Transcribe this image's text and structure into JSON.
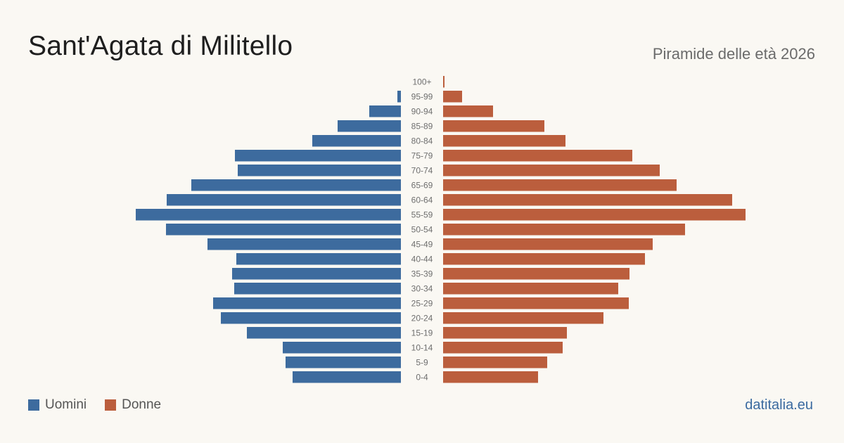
{
  "header": {
    "title": "Sant'Agata di Militello",
    "subtitle": "Piramide delle età 2026"
  },
  "legend": {
    "men_label": "Uomini",
    "women_label": "Donne"
  },
  "brand": "datitalia.eu",
  "colors": {
    "men": "#3d6b9e",
    "women": "#bb5e3d",
    "background": "#faf8f3"
  },
  "chart_data": {
    "type": "bar",
    "orientation": "horizontal-pyramid",
    "title": "Sant'Agata di Militello",
    "subtitle": "Piramide delle età 2026",
    "categories": [
      "100+",
      "95-99",
      "90-94",
      "85-89",
      "80-84",
      "75-79",
      "70-74",
      "65-69",
      "60-64",
      "55-59",
      "50-54",
      "45-49",
      "40-44",
      "35-39",
      "30-34",
      "25-29",
      "20-24",
      "15-19",
      "10-14",
      "5-9",
      "0-4"
    ],
    "series": [
      {
        "name": "Uomini",
        "values": [
          0,
          5,
          45,
          90,
          126,
          236,
          232,
          298,
          333,
          377,
          334,
          275,
          234,
          240,
          237,
          267,
          256,
          219,
          168,
          164,
          154
        ]
      },
      {
        "name": "Donne",
        "values": [
          2,
          27,
          71,
          144,
          174,
          269,
          308,
          332,
          411,
          430,
          344,
          298,
          287,
          265,
          249,
          264,
          228,
          176,
          170,
          148,
          135
        ]
      }
    ],
    "legend_position": "bottom-left",
    "grid": false
  }
}
